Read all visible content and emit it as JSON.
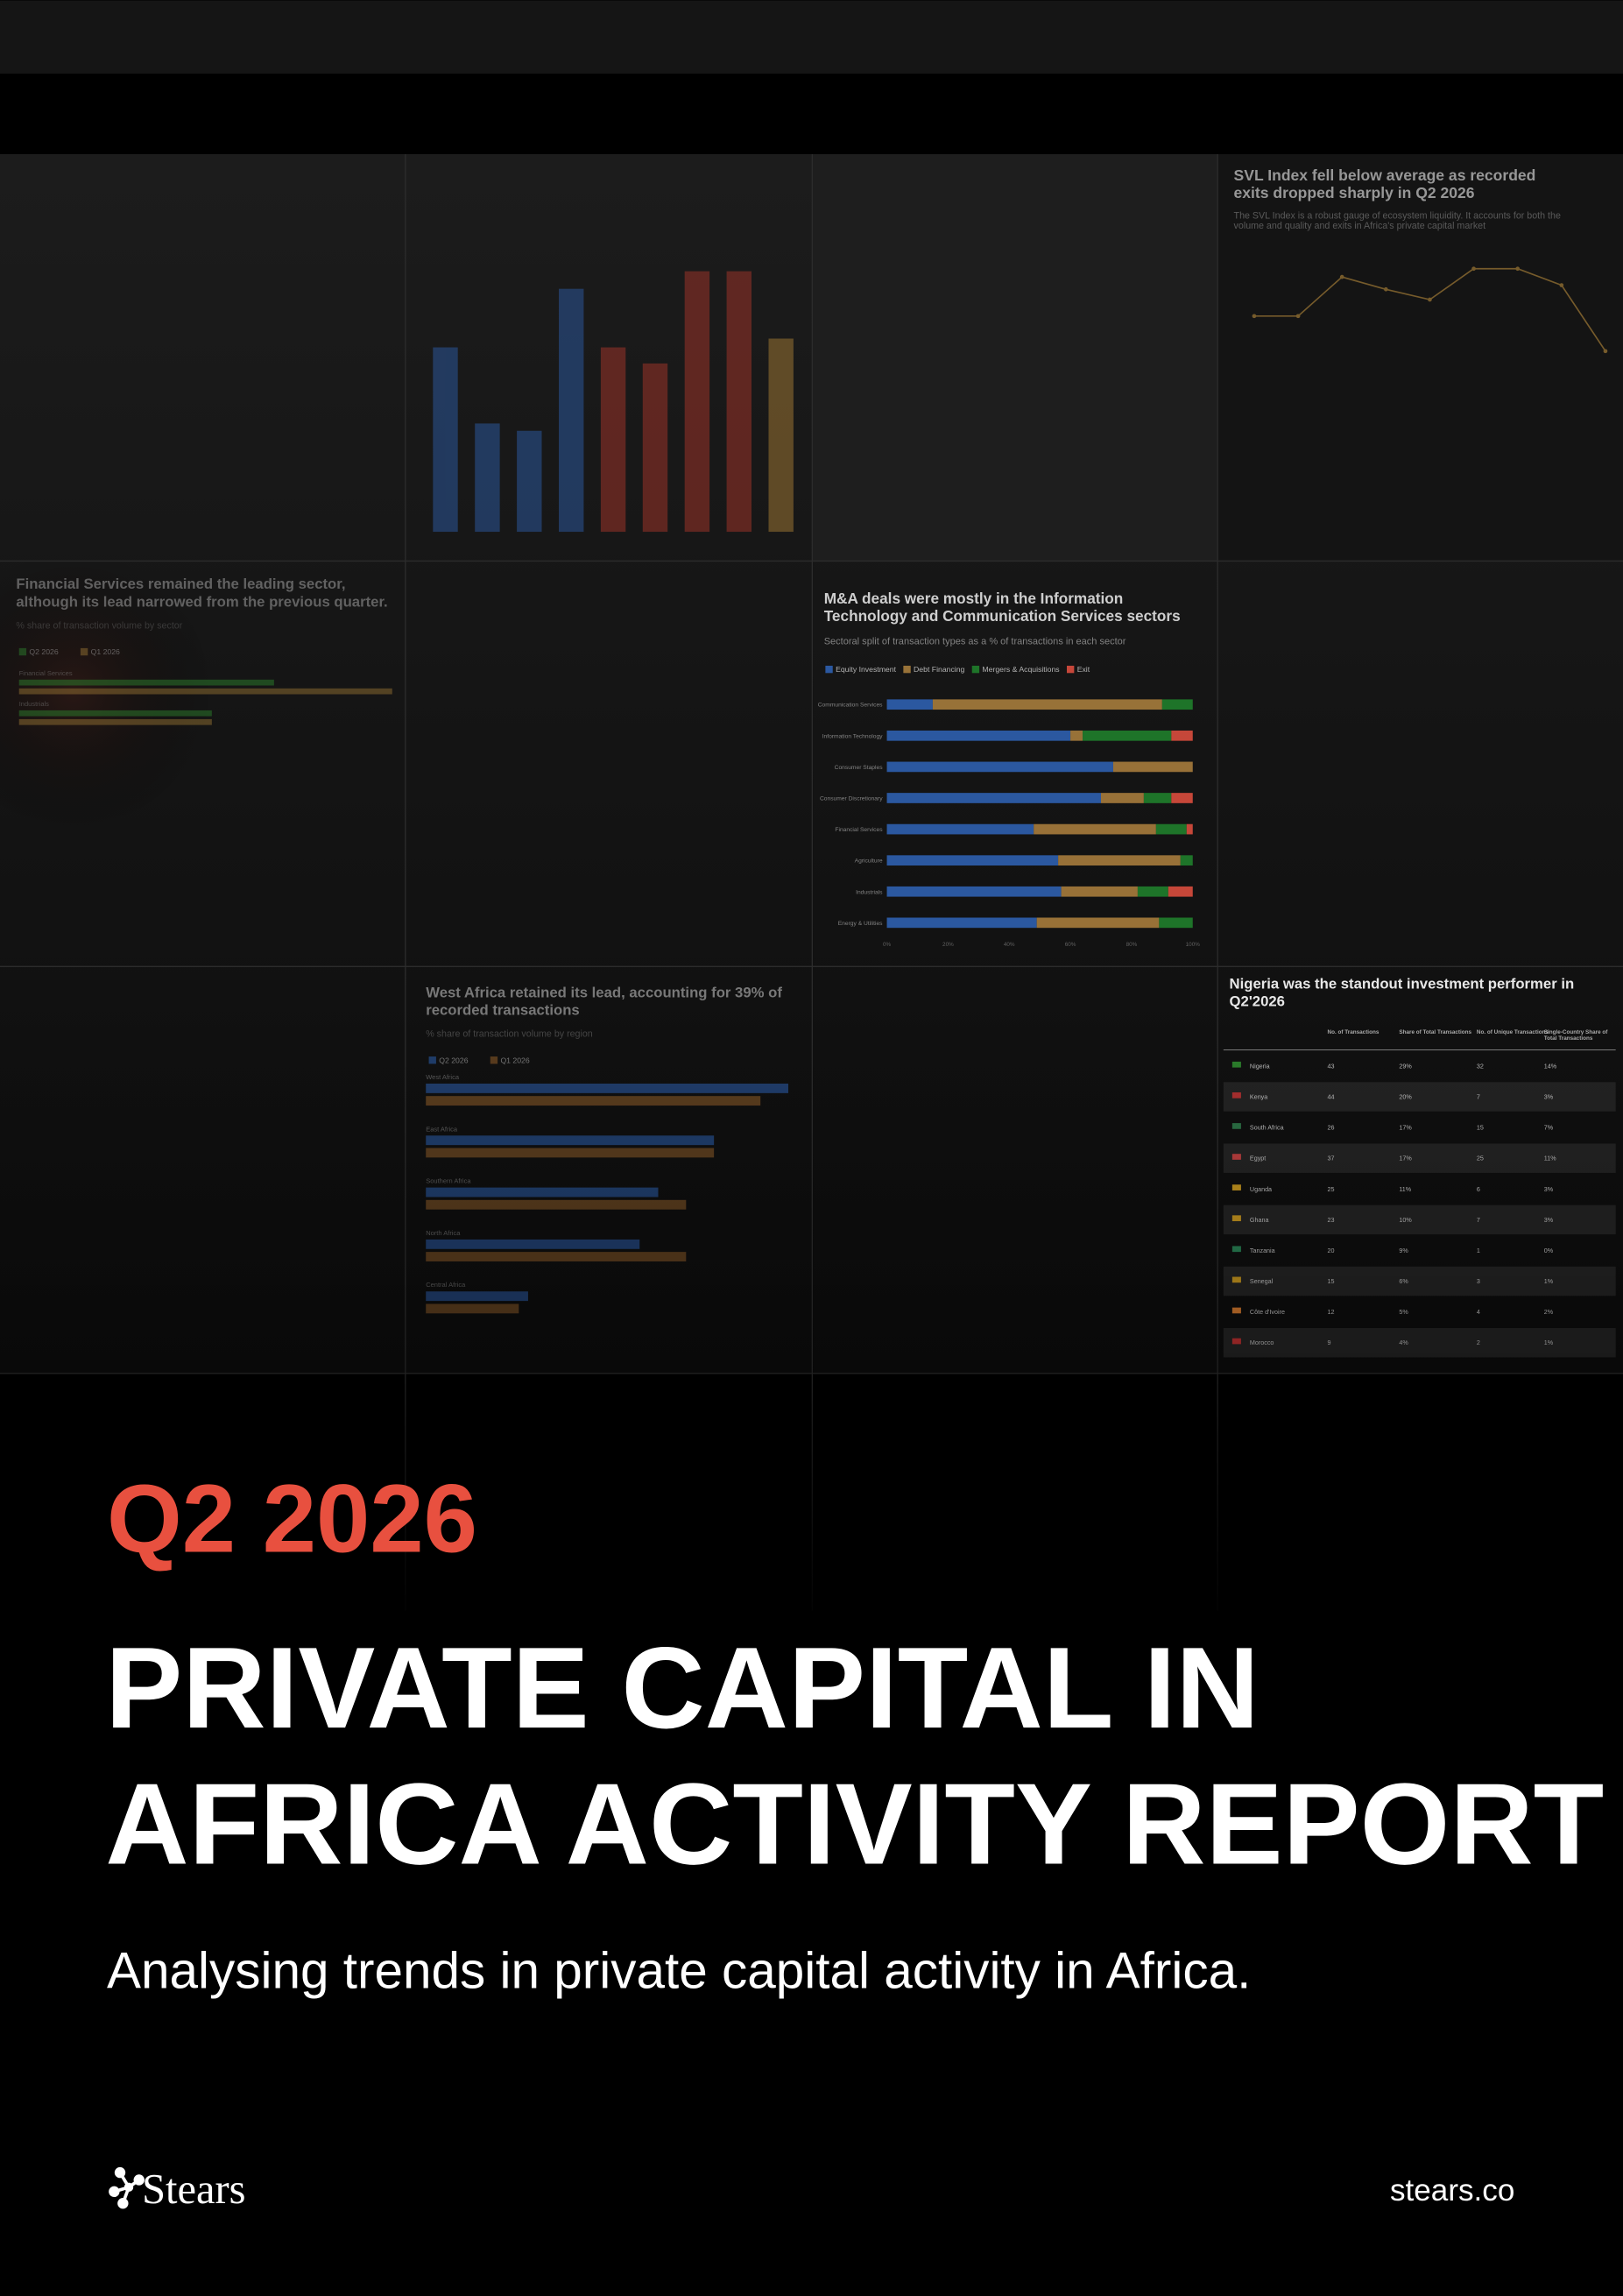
{
  "cover": {
    "edition": "Q2 2026",
    "title_lines": [
      "PRIVATE CAPITAL IN",
      "AFRICA ACTIVITY REPORT"
    ],
    "subtitle": "Analysing trends in private capital activity in Africa.",
    "brand": "Stears",
    "url": "stears.co"
  },
  "chart_data": [
    {
      "type": "column",
      "values": [
        126,
        74,
        69,
        166,
        126,
        115,
        178,
        178,
        132
      ],
      "colors": [
        "#2b5699",
        "#2b5699",
        "#2b5699",
        "#2b5699",
        "#9a3329",
        "#9a3329",
        "#9a3329",
        "#9a3329",
        "#9a7433"
      ],
      "ylim": [
        0,
        180
      ]
    },
    {
      "type": "line",
      "title": "SVL Index fell below average as recorded exits dropped sharply in Q2 2026",
      "subtitle": "The SVL Index is a robust gauge of ecosystem liquidity. It accounts for both the volume and quality and exits in Africa's private capital market",
      "values": [
        99,
        99,
        118,
        112,
        107,
        122,
        122,
        114,
        82
      ],
      "color": "#a07a36",
      "ylim": [
        0,
        130
      ]
    },
    {
      "type": "hbar",
      "title": "Financial Services remained the leading sector, although its lead narrowed from the previous quarter.",
      "subtitle": "% share of transaction volume by sector",
      "categories": [
        "Financial Services",
        "Industrials"
      ],
      "series": [
        {
          "name": "Q2 2026",
          "color": "#2f8a2f",
          "values": [
            20.5,
            15.5
          ]
        },
        {
          "name": "Q1 2026",
          "color": "#a07a36",
          "values": [
            30,
            15.5
          ]
        }
      ],
      "xlim": [
        0,
        30
      ]
    },
    {
      "type": "stacked",
      "title": "M&A deals were mostly in the Information Technology and Communication Services sectors",
      "subtitle": "Sectoral split of transaction types as a % of transactions in each sector",
      "categories": [
        "Communication Services",
        "Information Technology",
        "Consumer Staples",
        "Consumer Discretionary",
        "Financial Services",
        "Agriculture",
        "Industrials",
        "Energy & Utilities"
      ],
      "series": [
        {
          "name": "Equity Investment",
          "color": "#2d5ca8",
          "values": [
            15,
            60,
            74,
            70,
            48,
            56,
            57,
            49
          ]
        },
        {
          "name": "Debt Financing",
          "color": "#a0773a",
          "values": [
            75,
            4,
            26,
            14,
            40,
            40,
            25,
            40
          ]
        },
        {
          "name": "Mergers & Acquisitions",
          "color": "#1f7a2b",
          "values": [
            10,
            29,
            0,
            9,
            10,
            4,
            10,
            11
          ]
        },
        {
          "name": "Exit",
          "color": "#d04a3c",
          "values": [
            0,
            7,
            0,
            7,
            2,
            0,
            8,
            0
          ]
        }
      ],
      "xlim": [
        0,
        100
      ],
      "xticks": [
        {
          "value": 0,
          "label": "0%"
        },
        {
          "value": 20,
          "label": "20%"
        },
        {
          "value": 40,
          "label": "40%"
        },
        {
          "value": 60,
          "label": "60%"
        },
        {
          "value": 80,
          "label": "80%"
        },
        {
          "value": 100,
          "label": "100%"
        }
      ]
    },
    {
      "type": "hbar",
      "title": "West Africa retained its lead, accounting for 39% of recorded transactions",
      "subtitle": "% share of transaction volume by region",
      "categories": [
        "West Africa",
        "East Africa",
        "Southern Africa",
        "North Africa",
        "Central Africa"
      ],
      "series": [
        {
          "name": "Q2 2026",
          "color": "#2b5ca8",
          "values": [
            39,
            31,
            25,
            23,
            11
          ]
        },
        {
          "name": "Q1 2026",
          "color": "#8a5a28",
          "values": [
            36,
            31,
            28,
            28,
            10
          ]
        }
      ],
      "xlim": [
        0,
        40
      ]
    }
  ],
  "table": {
    "title": "Nigeria was the standout investment performer in Q2'2026",
    "headers": [
      "No. of Transactions",
      "Share of Total Transactions",
      "No. of Unique Transactions",
      "Single-Country Share of Total Transactions"
    ],
    "rows": [
      [
        "Nigeria",
        "43",
        "29%",
        "32",
        "14%"
      ],
      [
        "Kenya",
        "44",
        "20%",
        "7",
        "3%"
      ],
      [
        "South Africa",
        "26",
        "17%",
        "15",
        "7%"
      ],
      [
        "Egypt",
        "37",
        "17%",
        "25",
        "11%"
      ],
      [
        "Uganda",
        "25",
        "11%",
        "6",
        "3%"
      ],
      [
        "Ghana",
        "23",
        "10%",
        "7",
        "3%"
      ],
      [
        "Tanzania",
        "20",
        "9%",
        "1",
        "0%"
      ],
      [
        "Senegal",
        "15",
        "6%",
        "3",
        "1%"
      ],
      [
        "Côte d'Ivoire",
        "12",
        "5%",
        "4",
        "2%"
      ],
      [
        "Morocco",
        "9",
        "4%",
        "2",
        "1%"
      ]
    ]
  }
}
